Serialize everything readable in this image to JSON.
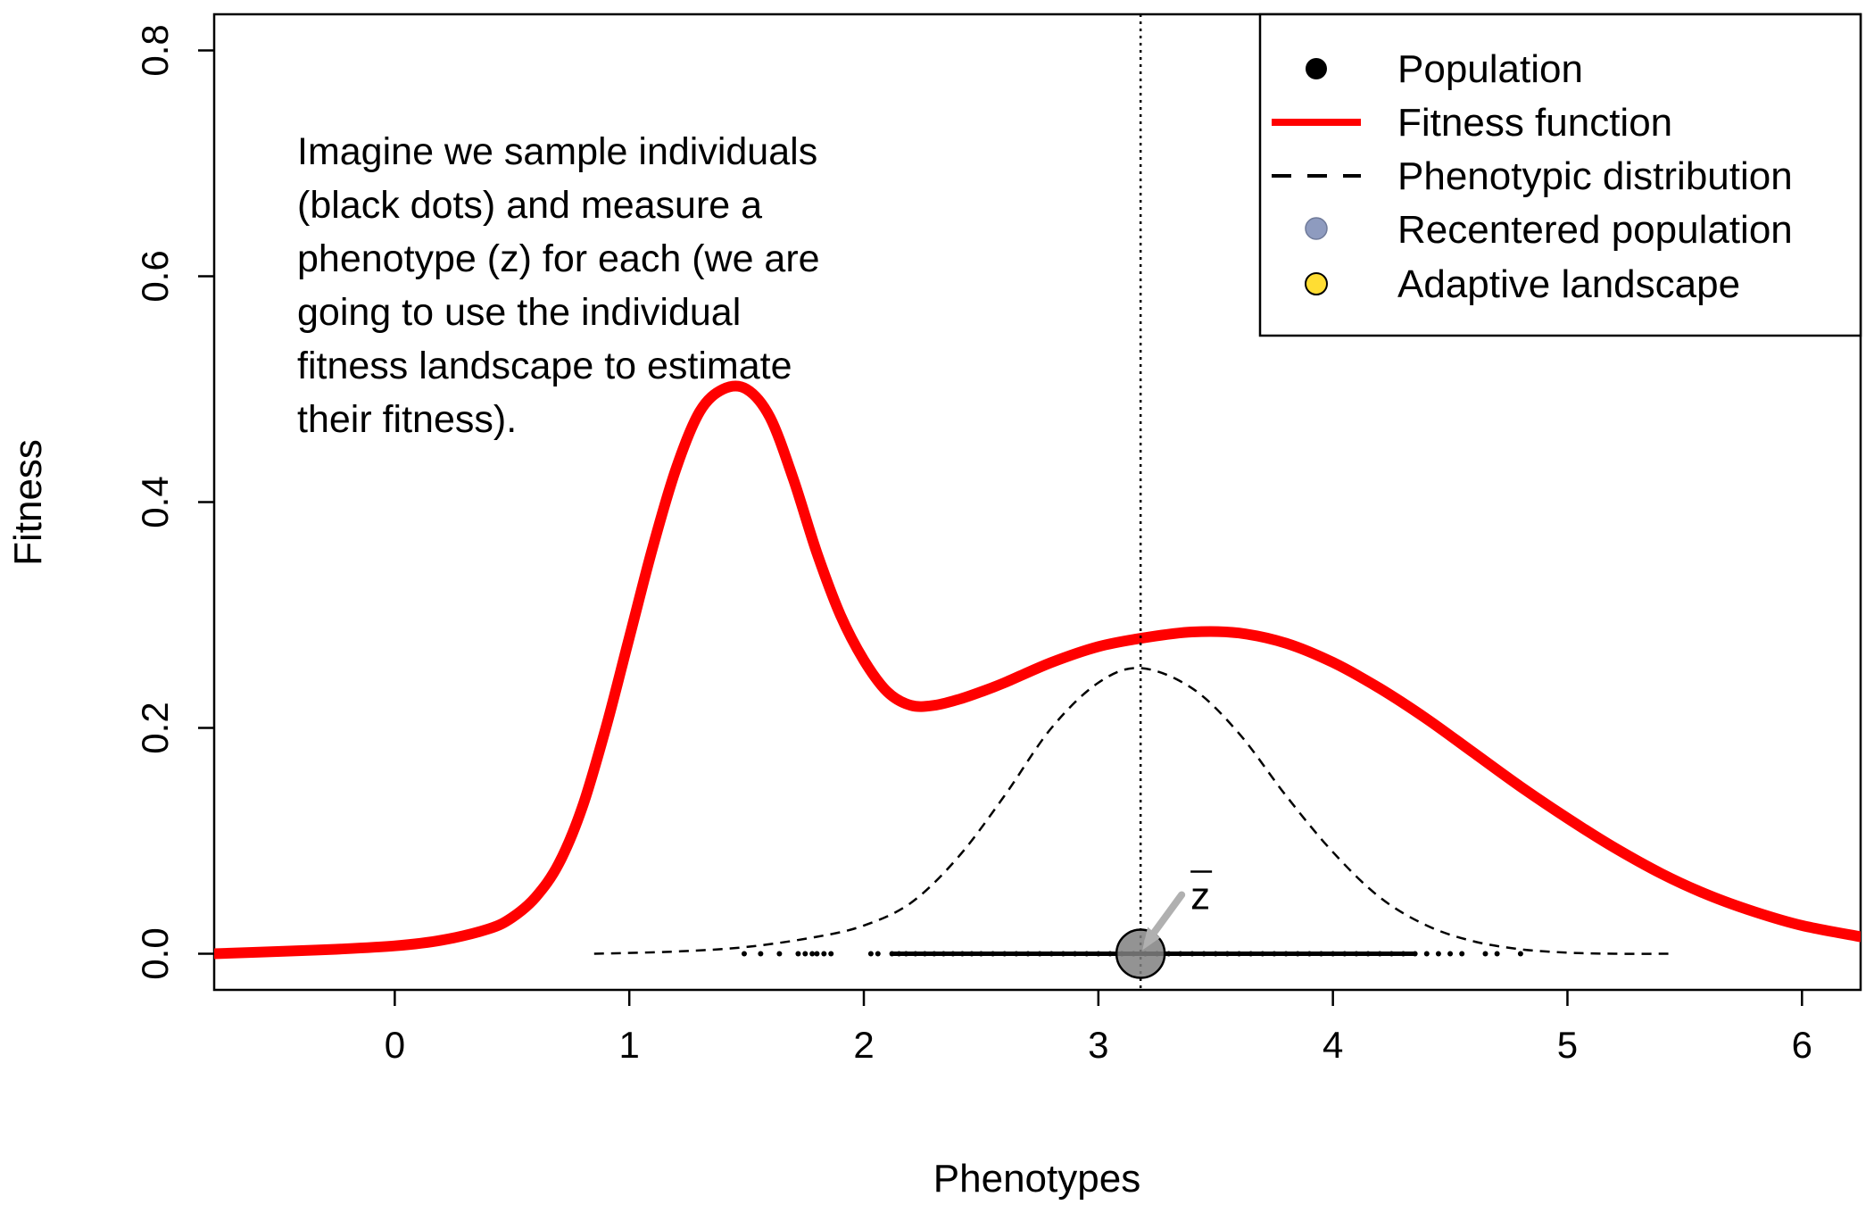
{
  "chart_data": {
    "type": "line",
    "xlabel": "Phenotypes",
    "ylabel": "Fitness",
    "xlim": [
      -0.77,
      6.25
    ],
    "ylim": [
      -0.032,
      0.832
    ],
    "x_ticks": [
      0,
      1,
      2,
      3,
      4,
      5,
      6
    ],
    "y_ticks": [
      0.0,
      0.2,
      0.4,
      0.6,
      0.8
    ],
    "x_tick_labels": [
      "0",
      "1",
      "2",
      "3",
      "4",
      "5",
      "6"
    ],
    "y_tick_labels": [
      "0.0",
      "0.2",
      "0.4",
      "0.6",
      "0.8"
    ],
    "grid": false,
    "legend_position": "top-right",
    "legend": [
      {
        "label": "Population",
        "symbol": "filled-circle",
        "color": "#000000"
      },
      {
        "label": "Fitness function",
        "symbol": "line",
        "color": "#ff0000"
      },
      {
        "label": "Phenotypic distribution",
        "symbol": "dashed-line",
        "color": "#000000"
      },
      {
        "label": "Recentered population",
        "symbol": "filled-circle",
        "color": "#8e9bbf"
      },
      {
        "label": "Adaptive landscape",
        "symbol": "filled-circle",
        "color": "#ffdd33"
      }
    ],
    "series": [
      {
        "name": "Fitness function",
        "style": "solid",
        "color": "#ff0000",
        "x": [
          -0.77,
          -0.5,
          -0.25,
          0.0,
          0.2,
          0.4,
          0.5,
          0.6,
          0.7,
          0.8,
          0.9,
          1.0,
          1.1,
          1.2,
          1.3,
          1.4,
          1.5,
          1.6,
          1.7,
          1.8,
          1.9,
          2.0,
          2.1,
          2.2,
          2.3,
          2.4,
          2.5,
          2.6,
          2.8,
          3.0,
          3.2,
          3.4,
          3.6,
          3.8,
          4.0,
          4.2,
          4.4,
          4.6,
          4.8,
          5.0,
          5.2,
          5.4,
          5.6,
          5.8,
          6.0,
          6.25
        ],
        "y": [
          0.0,
          0.002,
          0.004,
          0.007,
          0.012,
          0.022,
          0.032,
          0.05,
          0.08,
          0.13,
          0.2,
          0.28,
          0.36,
          0.43,
          0.48,
          0.5,
          0.5,
          0.475,
          0.42,
          0.355,
          0.3,
          0.26,
          0.232,
          0.22,
          0.22,
          0.225,
          0.232,
          0.24,
          0.258,
          0.272,
          0.28,
          0.285,
          0.284,
          0.275,
          0.258,
          0.235,
          0.208,
          0.178,
          0.148,
          0.12,
          0.094,
          0.071,
          0.052,
          0.037,
          0.025,
          0.015
        ]
      },
      {
        "name": "Phenotypic distribution",
        "style": "dashed",
        "color": "#000000",
        "x": [
          0.85,
          1.2,
          1.5,
          1.8,
          2.0,
          2.2,
          2.4,
          2.6,
          2.8,
          3.0,
          3.18,
          3.4,
          3.6,
          3.8,
          4.0,
          4.2,
          4.4,
          4.6,
          4.8,
          5.0,
          5.2,
          5.45
        ],
        "y": [
          0.0,
          0.002,
          0.006,
          0.015,
          0.025,
          0.045,
          0.085,
          0.14,
          0.2,
          0.24,
          0.253,
          0.235,
          0.195,
          0.14,
          0.09,
          0.05,
          0.025,
          0.011,
          0.004,
          0.001,
          0.0,
          0.0
        ]
      },
      {
        "name": "Population",
        "style": "points",
        "color": "#000000",
        "x": [
          1.49,
          1.56,
          1.64,
          1.72,
          1.75,
          1.78,
          1.8,
          1.83,
          1.86,
          2.03,
          2.06,
          2.12,
          2.15,
          2.18,
          2.22,
          2.26,
          2.3,
          2.34,
          2.38,
          2.42,
          2.46,
          2.5,
          2.55,
          2.6,
          2.65,
          2.7,
          2.75,
          2.8,
          2.85,
          2.9,
          2.95,
          3.0,
          3.05,
          3.1,
          3.15,
          3.2,
          3.25,
          3.3,
          3.35,
          3.4,
          3.45,
          3.5,
          3.55,
          3.6,
          3.65,
          3.7,
          3.75,
          3.8,
          3.85,
          3.9,
          3.95,
          4.0,
          4.05,
          4.1,
          4.15,
          4.2,
          4.25,
          4.3,
          4.35,
          4.4,
          4.45,
          4.5,
          4.55,
          4.65,
          4.7,
          4.8
        ],
        "y": [
          0,
          0,
          0,
          0,
          0,
          0,
          0,
          0,
          0,
          0,
          0,
          0,
          0,
          0,
          0,
          0,
          0,
          0,
          0,
          0,
          0,
          0,
          0,
          0,
          0,
          0,
          0,
          0,
          0,
          0,
          0,
          0,
          0,
          0,
          0,
          0,
          0,
          0,
          0,
          0,
          0,
          0,
          0,
          0,
          0,
          0,
          0,
          0,
          0,
          0,
          0,
          0,
          0,
          0,
          0,
          0,
          0,
          0,
          0,
          0,
          0,
          0,
          0,
          0,
          0,
          0
        ]
      }
    ],
    "mean_marker": {
      "x": 3.18,
      "y": 0.0,
      "label": "z"
    },
    "vline": {
      "x": 3.18,
      "style": "dotted"
    },
    "annotation": [
      "Imagine we sample individuals",
      "(black dots) and measure a",
      "phenotype (z) for each (we are",
      "going to use the individual",
      "fitness landscape to estimate",
      "their fitness)."
    ]
  }
}
